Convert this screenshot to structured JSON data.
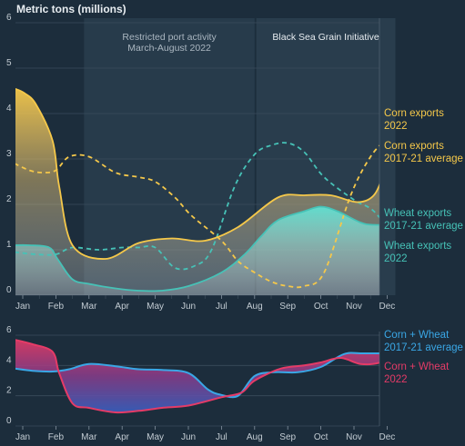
{
  "chart_data": [
    {
      "type": "line",
      "title": "Metric tons (millions)",
      "x": [
        "Jan",
        "Feb",
        "Mar",
        "Apr",
        "May",
        "Jun",
        "Jul",
        "Aug",
        "Sep",
        "Oct",
        "Nov",
        "Dec"
      ],
      "ylim": [
        0,
        6
      ],
      "yticks": [
        0,
        1,
        2,
        3,
        4,
        5,
        6
      ],
      "shaded_regions": [
        {
          "label_line1": "Restricted port activity",
          "label_line2": "March-August 2022",
          "from": 1.85,
          "to": 7.0
        },
        {
          "label_line1": "Black Sea Grain Initiative",
          "label_line2": "",
          "from": 7.05,
          "to": 11.25
        }
      ],
      "series": [
        {
          "name_line1": "Corn exports",
          "name_line2": "2022",
          "style": "solid",
          "color": "#f5c84a",
          "x": [
            -0.25,
            0.05,
            0.4,
            0.9,
            1.1,
            1.5,
            2.5,
            3.5,
            4.5,
            5.5,
            6.5,
            7.7,
            8.5,
            9.3,
            10.1,
            10.6,
            10.9,
            11.1
          ],
          "values": [
            4.55,
            4.45,
            4.2,
            3.4,
            2.4,
            1.1,
            0.8,
            1.15,
            1.25,
            1.2,
            1.5,
            2.15,
            2.2,
            2.2,
            2.05,
            2.2,
            2.7,
            3.3
          ]
        },
        {
          "name_line1": "Corn exports",
          "name_line2": "2017-21 average",
          "style": "dashed",
          "color": "#f5c84a",
          "x": [
            -0.25,
            0.2,
            0.6,
            1.0,
            1.4,
            2.0,
            2.8,
            3.5,
            4.0,
            4.6,
            5.1,
            6.0,
            6.5,
            7.0,
            7.5,
            8.0,
            8.5,
            9.1,
            9.9,
            10.5,
            11.0,
            11.25
          ],
          "values": [
            2.9,
            2.75,
            2.7,
            2.75,
            3.05,
            3.05,
            2.7,
            2.6,
            2.5,
            2.15,
            1.75,
            1.2,
            0.75,
            0.5,
            0.3,
            0.2,
            0.2,
            0.5,
            2.2,
            3.05,
            3.45,
            3.6
          ]
        },
        {
          "name_line1": "Wheat exports",
          "name_line2": "2017-21 average",
          "style": "dashed",
          "color": "#46c2b7",
          "x": [
            -0.25,
            0.4,
            1.0,
            1.5,
            2.3,
            3.0,
            3.5,
            4.0,
            4.6,
            5.2,
            5.7,
            6.4,
            7.0,
            7.5,
            8.0,
            8.5,
            9.1,
            10.0,
            10.6,
            11.25
          ],
          "values": [
            0.95,
            0.9,
            0.9,
            1.05,
            1.0,
            1.05,
            1.05,
            1.05,
            0.6,
            0.65,
            1.0,
            2.4,
            3.1,
            3.3,
            3.35,
            3.15,
            2.6,
            2.1,
            1.85,
            1.25
          ]
        },
        {
          "name_line1": "Wheat exports",
          "name_line2": "2022",
          "style": "solid",
          "color": "#46c2b7",
          "x": [
            -0.25,
            0.2,
            0.8,
            1.05,
            1.5,
            2.0,
            2.8,
            3.5,
            4.2,
            5.0,
            6.0,
            6.7,
            7.2,
            7.7,
            8.5,
            9.0,
            9.5,
            10.2,
            10.6,
            11.25
          ],
          "values": [
            1.1,
            1.1,
            1.05,
            0.8,
            0.35,
            0.25,
            0.15,
            0.1,
            0.1,
            0.2,
            0.5,
            0.9,
            1.3,
            1.65,
            1.85,
            1.95,
            1.85,
            1.6,
            1.55,
            1.55
          ]
        }
      ]
    },
    {
      "type": "line",
      "x": [
        "Jan",
        "Feb",
        "Mar",
        "Apr",
        "May",
        "Jun",
        "Jul",
        "Aug",
        "Sep",
        "Oct",
        "Nov",
        "Dec"
      ],
      "ylim": [
        0,
        6
      ],
      "yticks": [
        0,
        2,
        4,
        6
      ],
      "series": [
        {
          "name_line1": "Corn + Wheat",
          "name_line2": "2017-21 average",
          "style": "solid",
          "color": "#3aa7e6",
          "x": [
            -0.25,
            0.3,
            0.9,
            1.4,
            2.0,
            2.8,
            3.5,
            4.2,
            5.0,
            5.6,
            6.0,
            6.5,
            7.0,
            7.6,
            8.3,
            9.0,
            9.7,
            10.3,
            11.25
          ],
          "values": [
            3.8,
            3.65,
            3.6,
            3.75,
            4.1,
            3.95,
            3.75,
            3.7,
            3.5,
            2.4,
            2.05,
            2.0,
            3.3,
            3.55,
            3.55,
            3.9,
            4.75,
            4.8,
            4.8
          ]
        },
        {
          "name_line1": "Corn + Wheat",
          "name_line2": "2022",
          "style": "solid",
          "color": "#e53b67",
          "x": [
            -0.25,
            0.3,
            0.9,
            1.1,
            1.5,
            2.0,
            2.8,
            3.5,
            4.2,
            5.0,
            6.0,
            6.6,
            7.0,
            7.8,
            8.5,
            9.0,
            9.6,
            10.2,
            10.8,
            11.25
          ],
          "values": [
            5.7,
            5.4,
            4.9,
            3.5,
            1.5,
            1.2,
            0.9,
            1.0,
            1.2,
            1.35,
            1.9,
            2.2,
            3.0,
            3.8,
            4.0,
            4.2,
            4.5,
            4.1,
            4.2,
            4.75
          ]
        }
      ]
    }
  ]
}
